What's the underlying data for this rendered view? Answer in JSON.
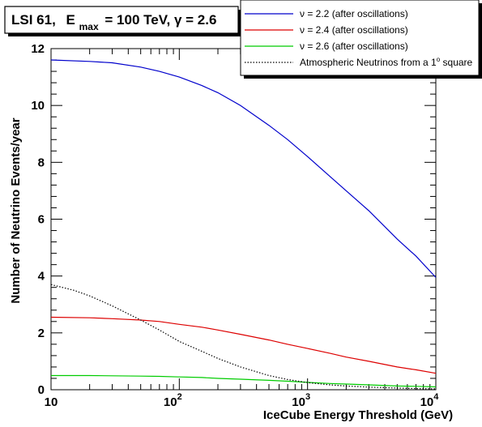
{
  "chart_data": {
    "type": "line",
    "title": {
      "source": "LSI 61,",
      "emax_symbol": "E",
      "emax_subscript": "max",
      "emax_value": "= 100 TeV,",
      "gamma_text": "γ = 2.6"
    },
    "xlabel": "IceCube Energy Threshold (GeV)",
    "ylabel": "Number of Neutrino Events/year",
    "x_scale": "log",
    "xlim": [
      10,
      10000
    ],
    "ylim": [
      0,
      12
    ],
    "x_ticks": [
      {
        "value": 10,
        "base": "10",
        "exp": ""
      },
      {
        "value": 100,
        "base": "10",
        "exp": "2"
      },
      {
        "value": 1000,
        "base": "10",
        "exp": "3"
      },
      {
        "value": 10000,
        "base": "10",
        "exp": "4"
      }
    ],
    "y_ticks": [
      "0",
      "2",
      "4",
      "6",
      "8",
      "10",
      "12"
    ],
    "legend": {
      "position": "top-right",
      "entries": [
        {
          "label": "ν = 2.2 (after oscillations)",
          "color": "#0000cc",
          "dash": "solid"
        },
        {
          "label": "ν = 2.4 (after oscillations)",
          "color": "#dd0000",
          "dash": "solid"
        },
        {
          "label": "ν = 2.6 (after oscillations)",
          "color": "#00cc00",
          "dash": "solid"
        },
        {
          "label": "Atmospheric Neutrinos from a 1",
          "suffix": " square",
          "superscript": "o",
          "color": "#000000",
          "dash": "dotted"
        }
      ]
    },
    "series": [
      {
        "name": "ν = 2.2 (after oscillations)",
        "color": "#0000cc",
        "dash": "solid",
        "x": [
          10,
          20,
          30,
          50,
          70,
          100,
          150,
          200,
          300,
          500,
          700,
          1000,
          1500,
          2000,
          3000,
          5000,
          7000,
          10000
        ],
        "y": [
          11.6,
          11.55,
          11.5,
          11.35,
          11.2,
          11.0,
          10.7,
          10.45,
          10.0,
          9.3,
          8.8,
          8.2,
          7.5,
          7.0,
          6.3,
          5.3,
          4.7,
          3.95
        ]
      },
      {
        "name": "ν = 2.4 (after oscillations)",
        "color": "#dd0000",
        "dash": "solid",
        "x": [
          10,
          20,
          30,
          50,
          70,
          100,
          150,
          200,
          300,
          500,
          700,
          1000,
          1500,
          2000,
          3000,
          5000,
          7000,
          10000
        ],
        "y": [
          2.55,
          2.53,
          2.5,
          2.45,
          2.4,
          2.3,
          2.2,
          2.1,
          1.95,
          1.75,
          1.6,
          1.45,
          1.28,
          1.15,
          1.0,
          0.8,
          0.7,
          0.58
        ]
      },
      {
        "name": "ν = 2.6 (after oscillations)",
        "color": "#00cc00",
        "dash": "solid",
        "x": [
          10,
          20,
          30,
          50,
          70,
          100,
          150,
          200,
          300,
          500,
          700,
          1000,
          1500,
          2000,
          3000,
          5000,
          7000,
          10000
        ],
        "y": [
          0.5,
          0.5,
          0.49,
          0.48,
          0.47,
          0.45,
          0.43,
          0.4,
          0.37,
          0.33,
          0.3,
          0.26,
          0.22,
          0.2,
          0.17,
          0.13,
          0.12,
          0.1
        ]
      },
      {
        "name": "Atmospheric Neutrinos from a 1° square",
        "color": "#000000",
        "dash": "dotted",
        "x": [
          10,
          15,
          20,
          30,
          50,
          70,
          100,
          150,
          200,
          300,
          500,
          700,
          1000,
          1500,
          2000,
          3000,
          5000,
          7000,
          10000
        ],
        "y": [
          3.7,
          3.5,
          3.3,
          2.95,
          2.45,
          2.1,
          1.7,
          1.35,
          1.1,
          0.8,
          0.5,
          0.36,
          0.25,
          0.17,
          0.13,
          0.09,
          0.06,
          0.04,
          0.03
        ]
      }
    ]
  }
}
